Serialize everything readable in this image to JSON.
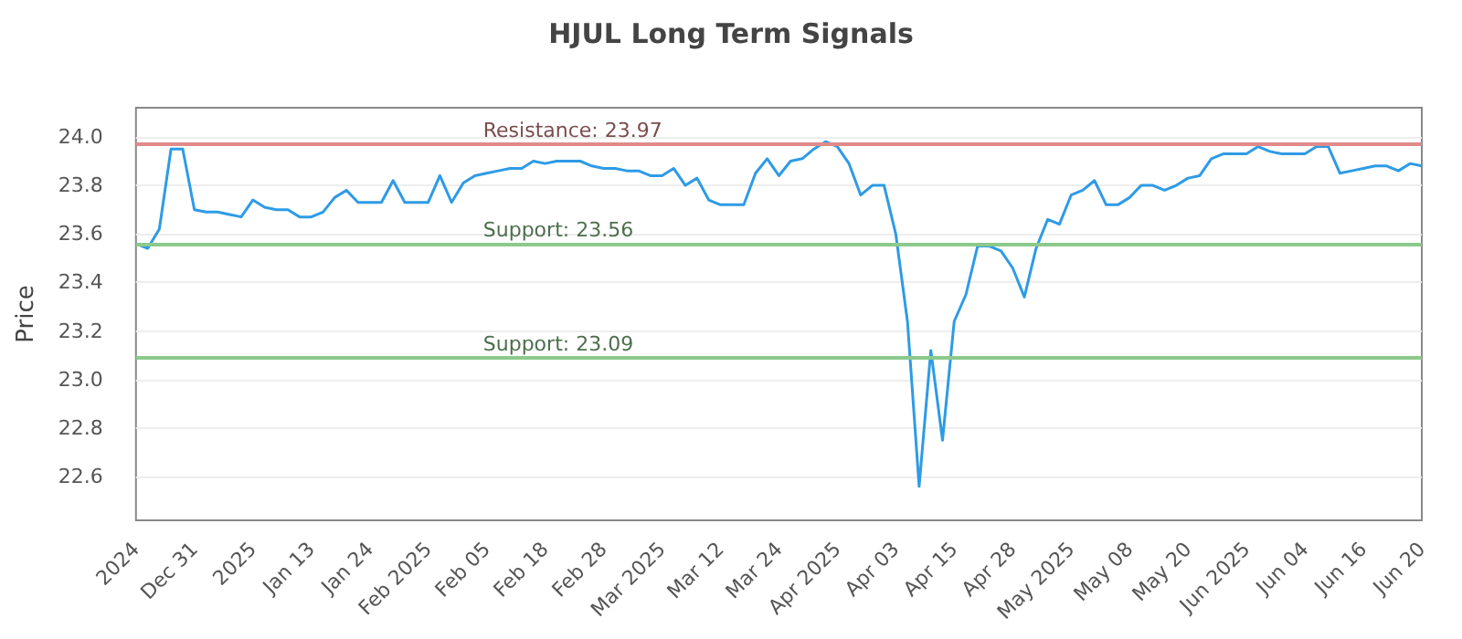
{
  "chart_data": {
    "type": "line",
    "title": "HJUL Long Term Signals",
    "ylabel": "Price",
    "categories": [
      "2024",
      null,
      null,
      null,
      null,
      "Dec 31",
      null,
      null,
      null,
      null,
      "2025",
      null,
      null,
      null,
      null,
      "Jan 13",
      null,
      null,
      null,
      null,
      "Jan 24",
      null,
      null,
      null,
      null,
      "Feb 2025",
      null,
      null,
      null,
      null,
      "Feb 05",
      null,
      null,
      null,
      null,
      "Feb 18",
      null,
      null,
      null,
      null,
      "Feb 28",
      null,
      null,
      null,
      null,
      "Mar 2025",
      null,
      null,
      null,
      null,
      "Mar 12",
      null,
      null,
      null,
      null,
      "Mar 24",
      null,
      null,
      null,
      null,
      "Apr 2025",
      null,
      null,
      null,
      null,
      "Apr 03",
      null,
      null,
      null,
      null,
      "Apr 15",
      null,
      null,
      null,
      null,
      "Apr 28",
      null,
      null,
      null,
      null,
      "May 2025",
      null,
      null,
      null,
      null,
      "May 08",
      null,
      null,
      null,
      null,
      "May 20",
      null,
      null,
      null,
      null,
      "Jun 2025",
      null,
      null,
      null,
      null,
      "Jun 04",
      null,
      null,
      null,
      null,
      "Jun 16",
      null,
      null,
      null,
      null,
      "Jun 20"
    ],
    "series": [
      {
        "color": "#2e9be6",
        "values": [
          23.56,
          23.54,
          23.62,
          23.95,
          23.95,
          23.7,
          23.69,
          23.69,
          23.68,
          23.67,
          23.74,
          23.71,
          23.7,
          23.7,
          23.67,
          23.67,
          23.69,
          23.75,
          23.78,
          23.73,
          23.73,
          23.73,
          23.82,
          23.73,
          23.73,
          23.73,
          23.84,
          23.73,
          23.81,
          23.84,
          23.85,
          23.86,
          23.87,
          23.87,
          23.9,
          23.89,
          23.9,
          23.9,
          23.9,
          23.88,
          23.87,
          23.87,
          23.86,
          23.86,
          23.84,
          23.84,
          23.87,
          23.8,
          23.83,
          23.74,
          23.72,
          23.72,
          23.72,
          23.85,
          23.91,
          23.84,
          23.9,
          23.91,
          23.95,
          23.98,
          23.96,
          23.89,
          23.76,
          23.8,
          23.8,
          23.6,
          23.24,
          22.56,
          23.12,
          22.75,
          23.24,
          23.35,
          23.55,
          23.55,
          23.53,
          23.46,
          23.34,
          23.54,
          23.66,
          23.64,
          23.76,
          23.78,
          23.82,
          23.72,
          23.72,
          23.75,
          23.8,
          23.8,
          23.78,
          23.8,
          23.83,
          23.84,
          23.91,
          23.93,
          23.93,
          23.93,
          23.96,
          23.94,
          23.93,
          23.93,
          23.93,
          23.96,
          23.96,
          23.85,
          23.86,
          23.87,
          23.88,
          23.88,
          23.86,
          23.89,
          23.88
        ]
      }
    ],
    "ylim": [
      22.42,
      24.12
    ],
    "yticks": [
      22.6,
      22.8,
      {
        "value": 23,
        "label": "23.0"
      },
      23.2,
      23.4,
      23.6,
      23.8,
      {
        "value": 24,
        "label": "24.0"
      }
    ],
    "ref_lines": [
      {
        "axis": "y",
        "value": 23.97,
        "label": "Resistance: 23.97",
        "color": "#e08a8a"
      },
      {
        "axis": "y",
        "value": 23.56,
        "label": "Support: 23.56",
        "color": "#8cc98c"
      },
      {
        "axis": "y",
        "value": 23.09,
        "label": "Support: 23.09",
        "color": "#8cc98c"
      }
    ],
    "grid": "y",
    "marker": "none",
    "line_style": "solid"
  }
}
